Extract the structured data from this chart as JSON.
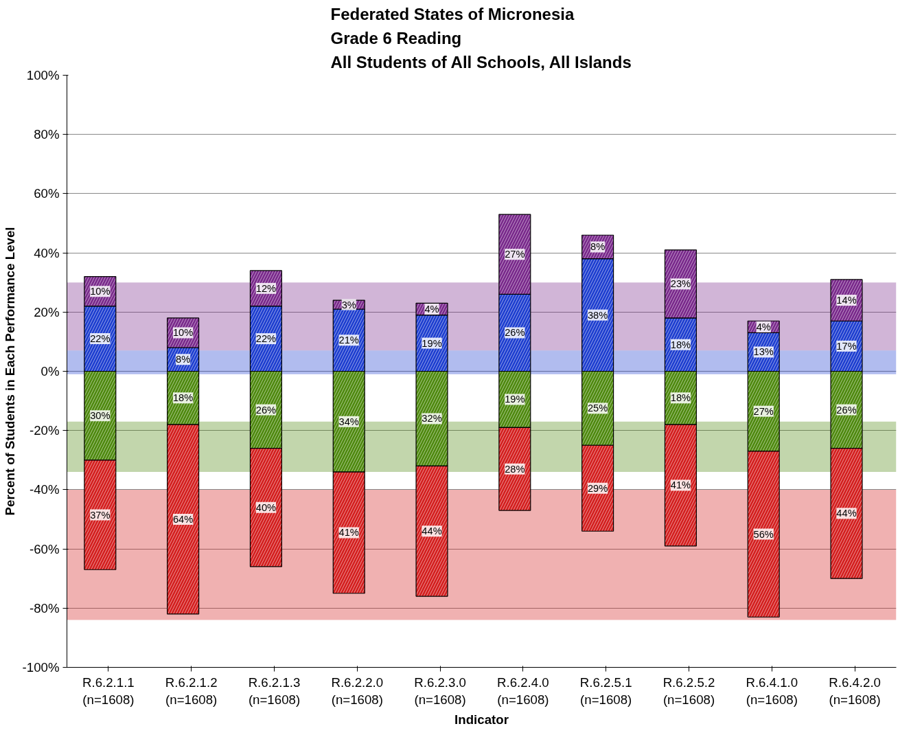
{
  "chart_data": {
    "type": "bar",
    "title": "Federated States of Micronesia\nGrade 6 Reading\nAll Students of All Schools, All Islands",
    "xlabel": "Indicator",
    "ylabel": "Percent of Students in Each Performance Level",
    "categories": [
      "R.6.2.1.1\n(n=1608)",
      "R.6.2.1.2\n(n=1608)",
      "R.6.2.1.3\n(n=1608)",
      "R.6.2.2.0\n(n=1608)",
      "R.6.2.3.0\n(n=1608)",
      "R.6.2.4.0\n(n=1608)",
      "R.6.2.5.1\n(n=1608)",
      "R.6.2.5.2\n(n=1608)",
      "R.6.4.1.0\n(n=1608)",
      "R.6.4.2.0\n(n=1608)"
    ],
    "series": [
      {
        "color": "#1f3fd0",
        "base": [
          0,
          0,
          0,
          0,
          0,
          0,
          0,
          0,
          0,
          0
        ],
        "values": [
          22,
          8,
          22,
          21,
          19,
          26,
          38,
          18,
          13,
          17
        ],
        "value_labels": [
          "22%",
          "8%",
          "22%",
          "21%",
          "19%",
          "26%",
          "38%",
          "18%",
          "13%",
          "17%"
        ]
      },
      {
        "color": "#7a2a8c",
        "base": [
          22,
          8,
          22,
          21,
          19,
          26,
          38,
          18,
          13,
          17
        ],
        "values": [
          10,
          10,
          12,
          3,
          4,
          27,
          8,
          23,
          4,
          14
        ],
        "value_labels": [
          "10%",
          "10%",
          "12%",
          "3%",
          "4%",
          "27%",
          "8%",
          "23%",
          "4%",
          "14%"
        ]
      },
      {
        "color": "#4f8a10",
        "base": [
          -30,
          -18,
          -26,
          -34,
          -32,
          -19,
          -25,
          -18,
          -27,
          -26
        ],
        "values": [
          30,
          18,
          26,
          34,
          32,
          19,
          25,
          18,
          27,
          26
        ],
        "value_labels": [
          "30%",
          "18%",
          "26%",
          "34%",
          "32%",
          "19%",
          "25%",
          "18%",
          "27%",
          "26%"
        ]
      },
      {
        "color": "#d42020",
        "base": [
          -67,
          -82,
          -66,
          -75,
          -76,
          -47,
          -54,
          -59,
          -83,
          -70
        ],
        "values": [
          37,
          64,
          40,
          41,
          44,
          28,
          29,
          41,
          56,
          44
        ],
        "value_labels": [
          "37%",
          "64%",
          "40%",
          "41%",
          "44%",
          "28%",
          "29%",
          "41%",
          "56%",
          "44%"
        ]
      }
    ],
    "bands": [
      {
        "axis": "y",
        "from": 7,
        "to": 30,
        "color": "#7a2a8c"
      },
      {
        "axis": "y",
        "from": -1,
        "to": 7,
        "color": "#1f3fd0"
      },
      {
        "axis": "y",
        "from": -34,
        "to": -17,
        "color": "#4f8a10"
      },
      {
        "axis": "y",
        "from": -84,
        "to": -40,
        "color": "#d42020"
      }
    ],
    "ylim": [
      -100,
      100
    ],
    "yticks": [
      {
        "value": -100,
        "label": "-100%"
      },
      {
        "value": -80,
        "label": "-80%"
      },
      {
        "value": -60,
        "label": "-60%"
      },
      {
        "value": -40,
        "label": "-40%"
      },
      {
        "value": -20,
        "label": "-20%"
      },
      {
        "value": 0,
        "label": "0%"
      },
      {
        "value": 20,
        "label": "20%"
      },
      {
        "value": 40,
        "label": "40%"
      },
      {
        "value": 60,
        "label": "60%"
      },
      {
        "value": 80,
        "label": "80%"
      },
      {
        "value": 100,
        "label": "100%"
      }
    ],
    "grid": "y"
  }
}
